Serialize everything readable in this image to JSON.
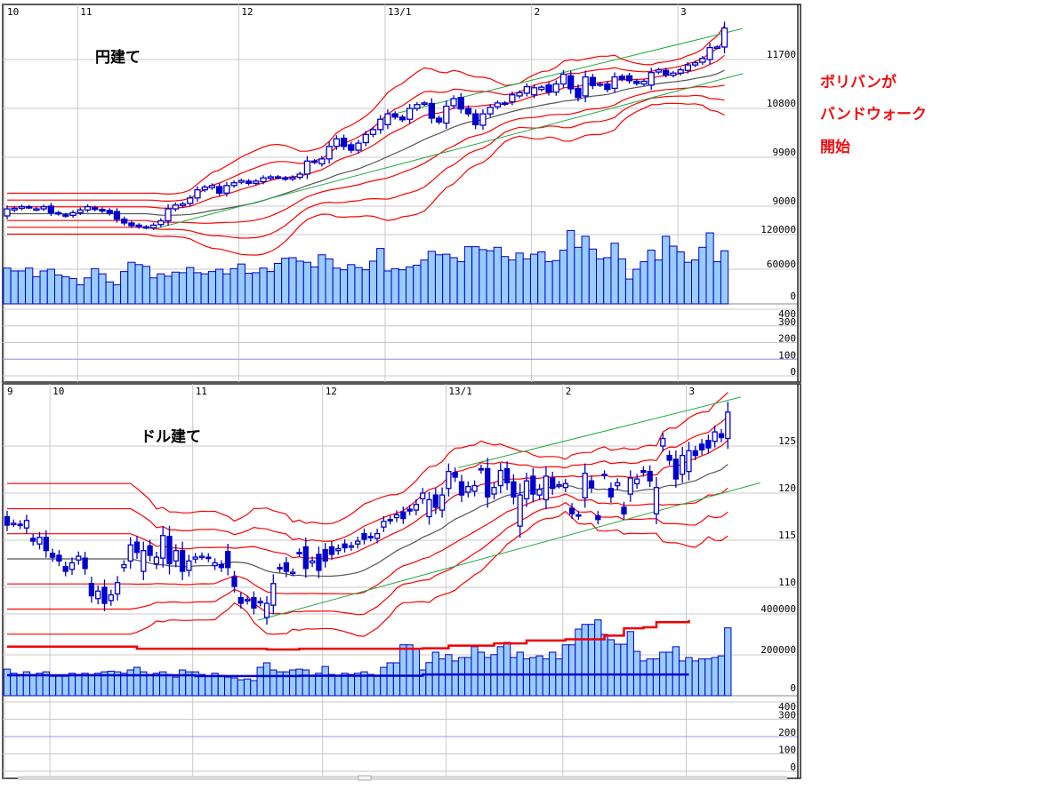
{
  "annotation": {
    "line1": "ボリバンが",
    "line2": "バンドウォーク",
    "line3": "開始",
    "color": "#ee1111"
  },
  "colors": {
    "up_fill": "#ffffff",
    "down_fill": "#0000cc",
    "candle_stroke": "#0000cc",
    "band": "#ff0000",
    "ma": "#555555",
    "trend": "#22aa44",
    "volume_fill": "#99ccff",
    "volume_stroke": "#0000cc",
    "grid": "#c8c8c8"
  },
  "chart_data": [
    {
      "type": "candlestick",
      "title": "円建て",
      "month_labels": [
        {
          "label": "10",
          "index": 0
        },
        {
          "label": "11",
          "index": 10
        },
        {
          "label": "12",
          "index": 32
        },
        {
          "label": "13/1",
          "index": 52
        },
        {
          "label": "2",
          "index": 72
        },
        {
          "label": "3",
          "index": 92
        }
      ],
      "price_ticks": [
        9000,
        9900,
        10800,
        11700
      ],
      "volume_ticks": [
        0,
        60000,
        120000
      ],
      "sub_ticks": [
        0,
        100,
        200,
        300,
        400
      ],
      "sub_line_value": 100,
      "bollinger_bands": {
        "sigmas": [
          1,
          2,
          3
        ]
      },
      "trend_lines": [
        {
          "from": [
            53.5,
            10720
          ],
          "to": [
            100.5,
            12270
          ]
        },
        {
          "from": [
            20,
            8575
          ],
          "to": [
            100.5,
            11440
          ]
        }
      ],
      "candles_open_close": [
        [
          8820,
          8950
        ],
        [
          8930,
          8960
        ],
        [
          8960,
          8990
        ],
        [
          8990,
          8980
        ],
        [
          8940,
          8950
        ],
        [
          8950,
          8990
        ],
        [
          9000,
          8880
        ],
        [
          8880,
          8860
        ],
        [
          8840,
          8820
        ],
        [
          8830,
          8880
        ],
        [
          8880,
          8930
        ],
        [
          8930,
          8990
        ],
        [
          8970,
          8940
        ],
        [
          8940,
          8910
        ],
        [
          8920,
          8870
        ],
        [
          8900,
          8760
        ],
        [
          8760,
          8690
        ],
        [
          8690,
          8640
        ],
        [
          8650,
          8620
        ],
        [
          8620,
          8610
        ],
        [
          8600,
          8650
        ],
        [
          8660,
          8730
        ],
        [
          8730,
          8950
        ],
        [
          8950,
          9020
        ],
        [
          9010,
          9040
        ],
        [
          9050,
          9150
        ],
        [
          9150,
          9300
        ],
        [
          9300,
          9350
        ],
        [
          9340,
          9380
        ],
        [
          9360,
          9240
        ],
        [
          9240,
          9380
        ],
        [
          9380,
          9430
        ],
        [
          9440,
          9470
        ],
        [
          9460,
          9420
        ],
        [
          9420,
          9460
        ],
        [
          9450,
          9520
        ],
        [
          9510,
          9540
        ],
        [
          9540,
          9530
        ],
        [
          9520,
          9500
        ],
        [
          9500,
          9530
        ],
        [
          9530,
          9590
        ],
        [
          9590,
          9830
        ],
        [
          9830,
          9810
        ],
        [
          9780,
          9870
        ],
        [
          9870,
          10100
        ],
        [
          10100,
          10240
        ],
        [
          10250,
          10100
        ],
        [
          10130,
          10030
        ],
        [
          10030,
          10160
        ],
        [
          10170,
          10320
        ],
        [
          10320,
          10410
        ],
        [
          10410,
          10600
        ],
        [
          10500,
          10700
        ],
        [
          10700,
          10640
        ],
        [
          10640,
          10590
        ],
        [
          10600,
          10800
        ],
        [
          10800,
          10870
        ],
        [
          10880,
          10900
        ],
        [
          10890,
          10620
        ],
        [
          10620,
          10550
        ],
        [
          10530,
          10840
        ],
        [
          10850,
          10980
        ],
        [
          11000,
          10790
        ],
        [
          10800,
          10700
        ],
        [
          10700,
          10500
        ],
        [
          10490,
          10700
        ],
        [
          10700,
          10820
        ],
        [
          10830,
          10900
        ],
        [
          10900,
          10880
        ],
        [
          10920,
          11050
        ],
        [
          11030,
          11090
        ],
        [
          11080,
          11200
        ],
        [
          11050,
          11180
        ],
        [
          11150,
          11190
        ],
        [
          11230,
          11100
        ],
        [
          11100,
          11250
        ],
        [
          11250,
          11430
        ],
        [
          11400,
          11160
        ],
        [
          11170,
          11000
        ],
        [
          11030,
          11380
        ],
        [
          11370,
          11220
        ],
        [
          11230,
          11250
        ],
        [
          11250,
          11150
        ],
        [
          11170,
          11380
        ],
        [
          11390,
          11340
        ],
        [
          11400,
          11310
        ],
        [
          11300,
          11260
        ],
        [
          11250,
          11300
        ],
        [
          11230,
          11460
        ],
        [
          11470,
          11510
        ],
        [
          11500,
          11420
        ],
        [
          11410,
          11450
        ],
        [
          11450,
          11510
        ],
        [
          11500,
          11600
        ],
        [
          11600,
          11640
        ],
        [
          11650,
          11720
        ],
        [
          11700,
          11920
        ],
        [
          11920,
          11930
        ],
        [
          11930,
          12280
        ]
      ],
      "volume": [
        62000,
        57000,
        57000,
        62000,
        47000,
        57000,
        60000,
        50000,
        47000,
        44000,
        33000,
        45000,
        61000,
        52000,
        38000,
        33000,
        56000,
        72000,
        68000,
        65000,
        45000,
        52000,
        48000,
        55000,
        54000,
        63000,
        54000,
        52000,
        56000,
        60000,
        52000,
        61000,
        69000,
        53000,
        54000,
        62000,
        56000,
        70000,
        79000,
        80000,
        74000,
        72000,
        64000,
        85000,
        78000,
        62000,
        59000,
        68000,
        63000,
        59000,
        74000,
        96000,
        57000,
        61000,
        59000,
        64000,
        67000,
        76000,
        91000,
        85000,
        86000,
        80000,
        73000,
        99000,
        99000,
        94000,
        92000,
        98000,
        82000,
        76000,
        88000,
        78000,
        86000,
        90000,
        73000,
        75000,
        93000,
        127000,
        98000,
        117000,
        95000,
        78000,
        80000,
        105000,
        78000,
        43000,
        60000,
        73000,
        93000,
        76000,
        117000,
        100000,
        90000,
        72000,
        76000,
        98000,
        123000,
        73000,
        92000
      ]
    },
    {
      "type": "candlestick",
      "title": "ドル建て",
      "month_labels": [
        {
          "label": "9",
          "index": 0
        },
        {
          "label": "10",
          "index": 7
        },
        {
          "label": "11",
          "index": 29
        },
        {
          "label": "12",
          "index": 49
        },
        {
          "label": "13/1",
          "index": 68
        },
        {
          "label": "2",
          "index": 86
        },
        {
          "label": "3",
          "index": 105
        }
      ],
      "price_ticks": [
        110,
        115,
        120,
        125
      ],
      "volume_ticks": [
        0,
        200000,
        400000
      ],
      "sub_ticks": [
        0,
        100,
        200,
        300,
        400
      ],
      "sub_line_value": 200,
      "bollinger_bands": {
        "sigmas": [
          1,
          2,
          3
        ]
      },
      "trend_lines": [
        {
          "from": [
            69.5,
            122.7
          ],
          "to": [
            113,
            130.2
          ]
        },
        {
          "from": [
            38.6,
            106.5
          ],
          "to": [
            116,
            121.1
          ]
        }
      ],
      "candles_open_close": [
        [
          117.5,
          116.6
        ],
        [
          116.8,
          116.8
        ],
        [
          116.7,
          116.6
        ],
        [
          116.3,
          117.1
        ],
        [
          115.2,
          114.9
        ],
        [
          114.6,
          115.3
        ],
        [
          115.3,
          113.9
        ],
        [
          113.6,
          113.2
        ],
        [
          113.4,
          112.8
        ],
        [
          112.2,
          111.7
        ],
        [
          111.9,
          112.6
        ],
        [
          112.9,
          113.3
        ],
        [
          113.1,
          112.0
        ],
        [
          110.4,
          109.1
        ],
        [
          108.8,
          109.6
        ],
        [
          110.0,
          108.3
        ],
        [
          108.6,
          109.2
        ],
        [
          109.3,
          110.5
        ],
        [
          112.1,
          112.4
        ],
        [
          112.8,
          114.5
        ],
        [
          114.8,
          113.7
        ],
        [
          111.7,
          113.9
        ],
        [
          114.4,
          113.4
        ],
        [
          112.5,
          113.2
        ],
        [
          113.1,
          115.5
        ],
        [
          115.4,
          112.5
        ],
        [
          112.8,
          113.9
        ],
        [
          113.9,
          111.7
        ],
        [
          111.8,
          112.8
        ],
        [
          113.0,
          113.2
        ],
        [
          113.3,
          113.3
        ],
        [
          113.2,
          113.1
        ],
        [
          112.3,
          112.6
        ],
        [
          112.4,
          112.1
        ],
        [
          113.8,
          112.1
        ],
        [
          111.1,
          110.1
        ],
        [
          108.9,
          108.3
        ],
        [
          108.6,
          108.7
        ],
        [
          108.9,
          107.8
        ],
        [
          108.4,
          108.5
        ],
        [
          106.8,
          108.3
        ],
        [
          108.1,
          110.4
        ],
        [
          112.1,
          112.0
        ],
        [
          112.6,
          111.7
        ],
        [
          111.6,
          111.6
        ],
        [
          113.7,
          113.6
        ],
        [
          114.3,
          112.0
        ],
        [
          112.6,
          112.8
        ],
        [
          113.5,
          111.8
        ],
        [
          114.0,
          112.8
        ],
        [
          114.3,
          113.5
        ],
        [
          113.9,
          114.1
        ],
        [
          114.6,
          114.2
        ],
        [
          114.3,
          114.4
        ],
        [
          114.6,
          114.9
        ],
        [
          115.7,
          115.1
        ],
        [
          115.4,
          115.3
        ],
        [
          115.2,
          115.7
        ],
        [
          116.4,
          117.0
        ],
        [
          117.2,
          117.1
        ],
        [
          117.4,
          117.7
        ],
        [
          118.0,
          117.3
        ],
        [
          118.3,
          118.1
        ],
        [
          118.2,
          118.8
        ],
        [
          119.4,
          120.0
        ],
        [
          117.5,
          119.3
        ],
        [
          119.8,
          118.5
        ],
        [
          118.2,
          119.8
        ],
        [
          120.5,
          122.3
        ],
        [
          122.2,
          121.7
        ],
        [
          121.2,
          119.8
        ],
        [
          120.1,
          120.7
        ],
        [
          120.2,
          120.8
        ],
        [
          122.6,
          122.5
        ],
        [
          122.6,
          119.6
        ],
        [
          119.9,
          120.6
        ],
        [
          120.8,
          122.4
        ],
        [
          122.6,
          121.1
        ],
        [
          121.2,
          119.6
        ],
        [
          116.5,
          119.8
        ],
        [
          119.4,
          121.3
        ],
        [
          121.8,
          119.9
        ],
        [
          119.8,
          120.4
        ],
        [
          119.3,
          121.8
        ],
        [
          121.6,
          120.5
        ],
        [
          120.9,
          120.9
        ],
        [
          120.6,
          121.0
        ],
        [
          118.4,
          117.8
        ],
        [
          117.7,
          117.6
        ],
        [
          119.5,
          122.1
        ],
        [
          121.3,
          120.6
        ],
        [
          117.6,
          117.2
        ],
        [
          121.9,
          122.0
        ],
        [
          120.5,
          119.6
        ],
        [
          120.8,
          121.1
        ],
        [
          118.5,
          117.8
        ],
        [
          119.9,
          121.6
        ],
        [
          121.0,
          121.5
        ],
        [
          122.4,
          122.2
        ],
        [
          122.3,
          121.3
        ],
        [
          117.8,
          120.6
        ],
        [
          125.0,
          125.8
        ],
        [
          124.0,
          123.5
        ],
        [
          123.6,
          121.5
        ],
        [
          122.0,
          124.0
        ],
        [
          122.3,
          124.5
        ],
        [
          124.5,
          124.0
        ],
        [
          125.2,
          124.6
        ],
        [
          125.6,
          124.8
        ],
        [
          125.5,
          126.5
        ],
        [
          126.3,
          125.9
        ],
        [
          125.8,
          128.6
        ]
      ],
      "volume": [
        130000,
        110000,
        104000,
        117000,
        104000,
        110000,
        117000,
        95000,
        95000,
        95000,
        110000,
        104000,
        110000,
        104000,
        110000,
        117000,
        120000,
        117000,
        110000,
        126000,
        139000,
        117000,
        104000,
        110000,
        117000,
        104000,
        91000,
        126000,
        117000,
        117000,
        104000,
        95000,
        110000,
        100000,
        91000,
        87000,
        78000,
        82000,
        74000,
        139000,
        161000,
        126000,
        117000,
        117000,
        126000,
        130000,
        126000,
        95000,
        110000,
        143000,
        104000,
        100000,
        110000,
        104000,
        110000,
        117000,
        104000,
        95000,
        139000,
        161000,
        161000,
        249000,
        249000,
        230000,
        126000,
        162000,
        213000,
        180000,
        201000,
        170000,
        187000,
        187000,
        240000,
        213000,
        187000,
        201000,
        240000,
        261000,
        187000,
        213000,
        180000,
        187000,
        195000,
        180000,
        213000,
        180000,
        249000,
        249000,
        326000,
        349000,
        349000,
        371000,
        300000,
        274000,
        252000,
        252000,
        314000,
        217000,
        170000,
        180000,
        180000,
        213000,
        213000,
        240000,
        170000,
        187000,
        170000,
        180000,
        180000,
        187000,
        195000,
        332000
      ],
      "volume_line_red": [
        [
          0,
          240000
        ],
        [
          19,
          240000
        ],
        [
          20,
          230000
        ],
        [
          40,
          226000
        ],
        [
          45,
          230000
        ],
        [
          64,
          232000
        ],
        [
          68,
          245000
        ],
        [
          75,
          256000
        ],
        [
          80,
          270000
        ],
        [
          86,
          276000
        ],
        [
          92,
          294000
        ],
        [
          95,
          330000
        ],
        [
          98,
          335000
        ],
        [
          100,
          360000
        ],
        [
          105,
          370000
        ]
      ],
      "volume_line_blue": [
        [
          0,
          100000
        ],
        [
          7,
          100000
        ],
        [
          29,
          96000
        ],
        [
          45,
          98000
        ],
        [
          64,
          104000
        ],
        [
          105,
          104000
        ]
      ]
    }
  ]
}
